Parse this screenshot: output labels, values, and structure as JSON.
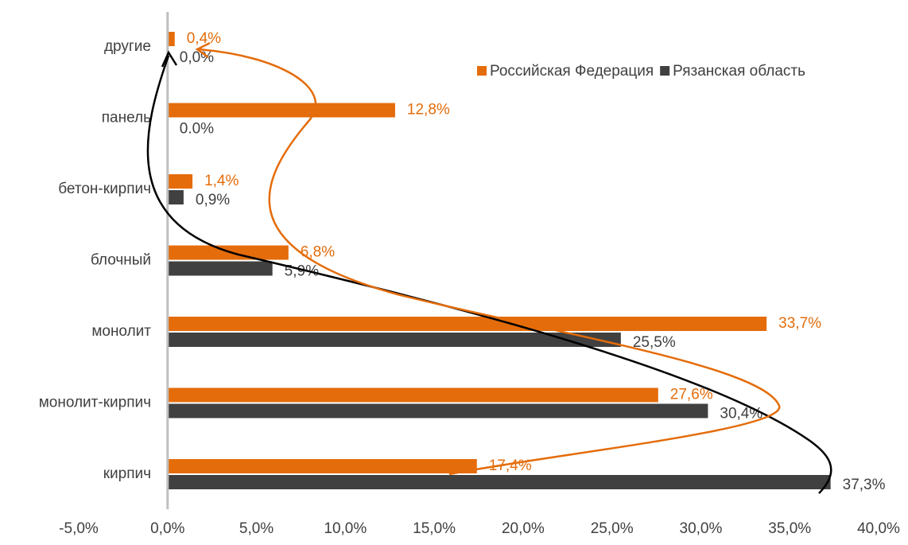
{
  "chart_data": {
    "type": "barh",
    "categories": [
      "другие",
      "панель",
      "бетон-кирпич",
      "блочный",
      "монолит",
      "монолит-кирпич",
      "кирпич"
    ],
    "series": [
      {
        "name": "Российская Федерация",
        "color": "#e46c0a",
        "values": [
          0.4,
          12.8,
          1.4,
          6.8,
          33.7,
          27.6,
          17.4
        ],
        "value_labels": [
          "0,4%",
          "12,8%",
          "1,4%",
          "6,8%",
          "33,7%",
          "27,6%",
          "17,4%"
        ]
      },
      {
        "name": "Рязанская область",
        "color": "#404040",
        "values": [
          0.0,
          0.0,
          0.9,
          5.9,
          25.5,
          30.4,
          37.3
        ],
        "value_labels": [
          "0,0%",
          "0.0%",
          "0,9%",
          "5,9%",
          "25,5%",
          "30,4%",
          "37,3%"
        ]
      }
    ],
    "xlim": [
      -5,
      40
    ],
    "xticks": [
      {
        "value": -5,
        "label": "-5,0%"
      },
      {
        "value": 0,
        "label": "0,0%"
      },
      {
        "value": 5,
        "label": "5,0%"
      },
      {
        "value": 10,
        "label": "10,0%"
      },
      {
        "value": 15,
        "label": "15,0%"
      },
      {
        "value": 20,
        "label": "20,0%"
      },
      {
        "value": 25,
        "label": "25,0%"
      },
      {
        "value": 30,
        "label": "30,0%"
      },
      {
        "value": 35,
        "label": "35,0%"
      },
      {
        "value": 40,
        "label": "40,0%"
      }
    ],
    "legend": "upper right"
  }
}
